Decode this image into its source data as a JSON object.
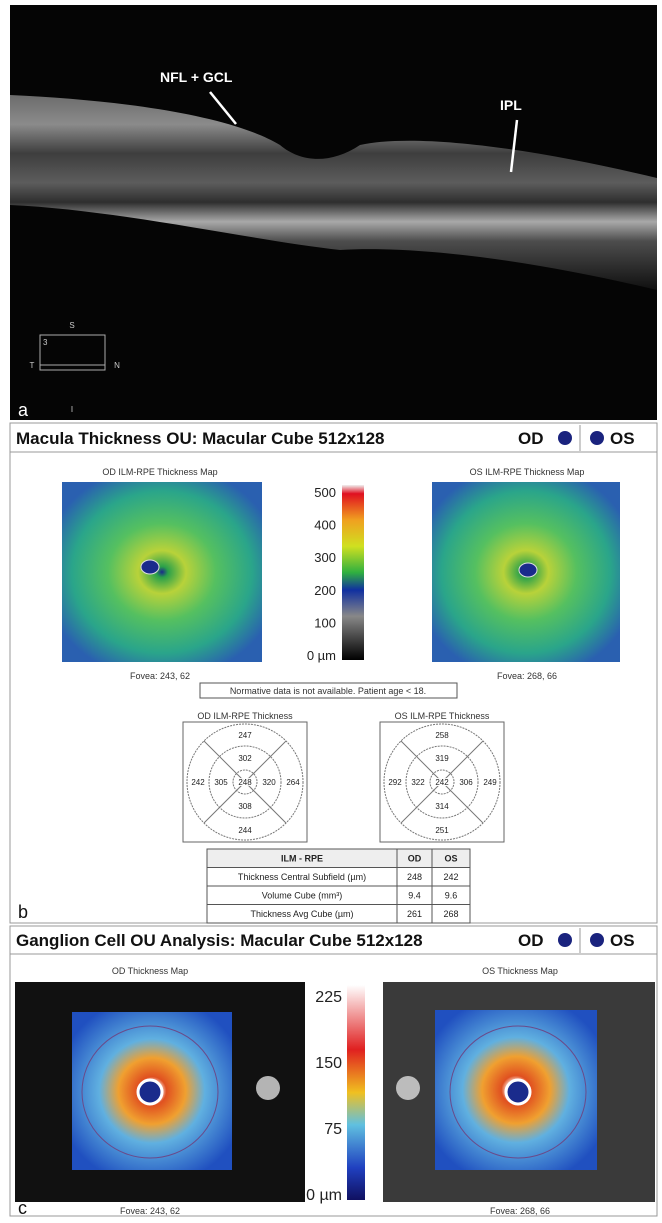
{
  "panel_a": {
    "label": "a",
    "annotations": [
      "NFL + GCL",
      "IPL"
    ],
    "orientation": {
      "top": "S",
      "left": "T",
      "right": "N",
      "bottom": "I",
      "number": "3"
    }
  },
  "panel_b": {
    "label": "b",
    "header": {
      "title": "Macula Thickness OU: Macular Cube 512x128",
      "od": "OD",
      "os": "OS"
    },
    "maps": [
      {
        "title": "OD ILM-RPE Thickness Map",
        "fovea": "Fovea: 243, 62"
      },
      {
        "title": "OS ILM-RPE Thickness Map",
        "fovea": "Fovea: 268, 66"
      }
    ],
    "colorbar": [
      "500",
      "400",
      "300",
      "200",
      "100",
      "0 µm"
    ],
    "note": "Normative data is not available. Patient age < 18.",
    "grids": [
      {
        "title": "OD ILM-RPE Thickness",
        "outer_top": 247,
        "inner_top": 302,
        "outer_left": 242,
        "inner_left": 305,
        "center": 248,
        "inner_right": 320,
        "outer_right": 264,
        "inner_bottom": 308,
        "outer_bottom": 244
      },
      {
        "title": "OS ILM-RPE Thickness",
        "outer_top": 258,
        "inner_top": 319,
        "outer_left": 292,
        "inner_left": 322,
        "center": 242,
        "inner_right": 306,
        "outer_right": 249,
        "inner_bottom": 314,
        "outer_bottom": 251
      }
    ],
    "table": {
      "header": [
        "ILM - RPE",
        "OD",
        "OS"
      ],
      "rows": [
        [
          "Thickness Central Subfield (µm)",
          248,
          242
        ],
        [
          "Volume Cube (mm³)",
          9.4,
          9.6
        ],
        [
          "Thickness Avg Cube (µm)",
          261,
          268
        ]
      ]
    }
  },
  "panel_c": {
    "label": "c",
    "header": {
      "title": "Ganglion Cell OU Analysis: Macular Cube 512x128",
      "od": "OD",
      "os": "OS"
    },
    "maps": [
      {
        "title": "OD Thickness Map",
        "fovea": "Fovea: 243, 62"
      },
      {
        "title": "OS Thickness Map",
        "fovea": "Fovea: 268, 66"
      }
    ],
    "colorbar": [
      "225",
      "150",
      "75",
      "0 µm"
    ]
  }
}
